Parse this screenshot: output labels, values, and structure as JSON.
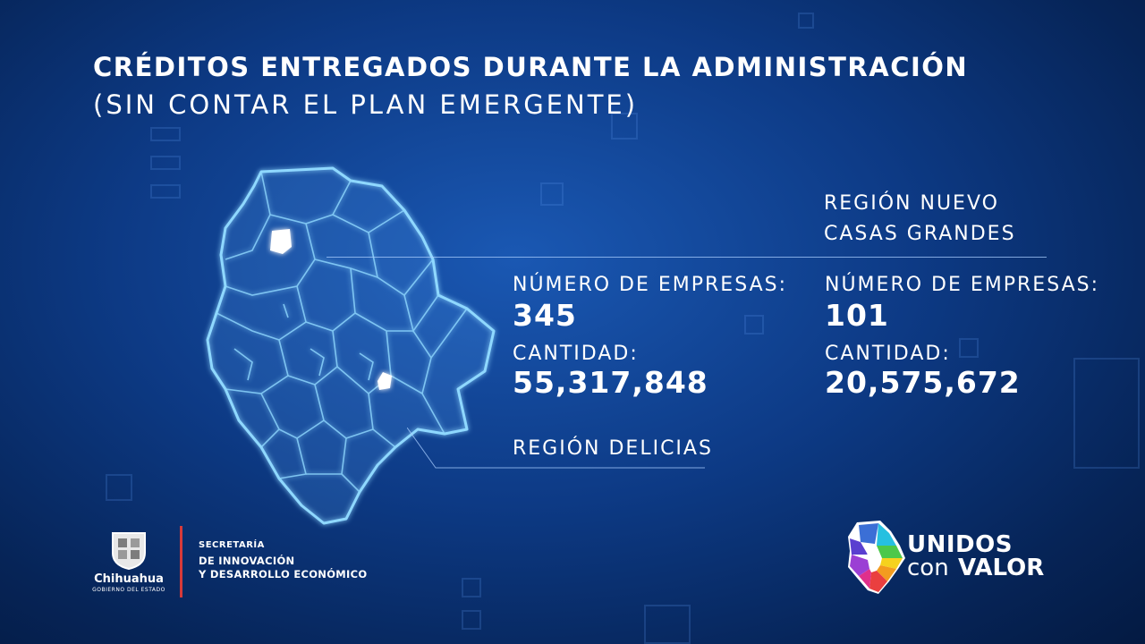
{
  "title": "CRÉDITOS ENTREGADOS DURANTE LA ADMINISTRACIÓN",
  "subtitle": "(SIN CONTAR EL PLAN EMERGENTE)",
  "regions": [
    {
      "name": "REGIÓN DELICIAS",
      "companies_label": "NÚMERO DE EMPRESAS:",
      "companies": "345",
      "amount_label": "CANTIDAD:",
      "amount": "55,317,848"
    },
    {
      "name_line1": "REGIÓN NUEVO",
      "name_line2": "CASAS GRANDES",
      "companies_label": "NÚMERO DE EMPRESAS:",
      "companies": "101",
      "amount_label": "CANTIDAD:",
      "amount": "20,575,672"
    }
  ],
  "footer": {
    "gov_logo_name": "Chihuahua",
    "gov_logo_sub": "GOBIERNO DEL ESTADO",
    "secretaria_line1": "SECRETARÍA",
    "secretaria_line2": "DE INNOVACIÓN",
    "secretaria_line3": "Y DESARROLLO ECONÓMICO",
    "campaign_line1": "UNIDOS",
    "campaign_con": "con",
    "campaign_valor": "VALOR"
  },
  "colors": {
    "background": "#0d3a85",
    "map_outline": "#8fd8ff",
    "highlight": "#ffffff",
    "divider": "#d63a3a"
  }
}
